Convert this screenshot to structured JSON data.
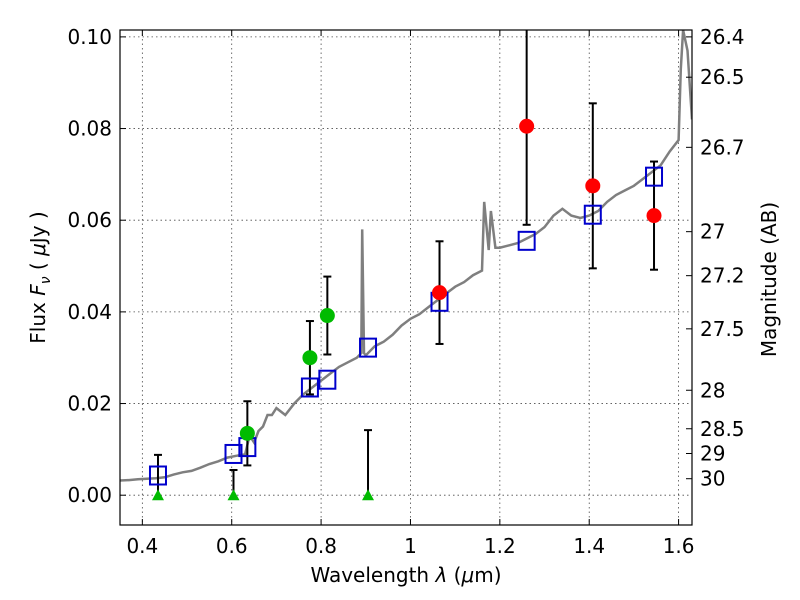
{
  "chart_data": {
    "type": "scatter",
    "title": "",
    "xlabel": "Wavelength λ (μm)",
    "ylabel": "Flux F_ν (μJy)",
    "y2label": "Magnitude (AB)",
    "xlim": [
      0.35,
      1.63
    ],
    "ylim": [
      -0.0065,
      0.1015
    ],
    "x_ticks": [
      0.4,
      0.6,
      0.8,
      1.0,
      1.2,
      1.4,
      1.6
    ],
    "x_tick_labels": [
      "0.4",
      "0.6",
      "0.8",
      "1",
      "1.2",
      "1.4",
      "1.6"
    ],
    "y_ticks": [
      0.0,
      0.02,
      0.04,
      0.06,
      0.08,
      0.1
    ],
    "y_tick_labels": [
      "0.00",
      "0.02",
      "0.04",
      "0.06",
      "0.08",
      "0.10"
    ],
    "y2_ticks": [
      {
        "label": "26.4",
        "flux": 0.1
      },
      {
        "label": "26.5",
        "flux": 0.0912
      },
      {
        "label": "26.7",
        "flux": 0.0759
      },
      {
        "label": "27",
        "flux": 0.0575
      },
      {
        "label": "27.2",
        "flux": 0.0479
      },
      {
        "label": "27.5",
        "flux": 0.0363
      },
      {
        "label": "28",
        "flux": 0.0229
      },
      {
        "label": "28.5",
        "flux": 0.0145
      },
      {
        "label": "29",
        "flux": 0.0091
      },
      {
        "label": "30",
        "flux": 0.0036
      }
    ],
    "grid": true,
    "colors": {
      "model": "#7f7f7f",
      "model_photometry": "#0000cc",
      "red_points": "#ff0000",
      "green_points": "#00bb00",
      "upper_limits": "#00bb00",
      "errorbars": "#000000"
    },
    "series": [
      {
        "kind": "line",
        "points": [
          [
            0.35,
            0.0032
          ],
          [
            0.37,
            0.0033
          ],
          [
            0.39,
            0.0035
          ],
          [
            0.41,
            0.0036
          ],
          [
            0.43,
            0.0037
          ],
          [
            0.45,
            0.0039
          ],
          [
            0.47,
            0.0045
          ],
          [
            0.49,
            0.005
          ],
          [
            0.51,
            0.0053
          ],
          [
            0.53,
            0.006
          ],
          [
            0.55,
            0.0068
          ],
          [
            0.57,
            0.0074
          ],
          [
            0.59,
            0.0082
          ],
          [
            0.61,
            0.0086
          ],
          [
            0.63,
            0.0089
          ],
          [
            0.64,
            0.013
          ],
          [
            0.65,
            0.0115
          ],
          [
            0.66,
            0.014
          ],
          [
            0.67,
            0.015
          ],
          [
            0.68,
            0.0175
          ],
          [
            0.69,
            0.0175
          ],
          [
            0.7,
            0.019
          ],
          [
            0.72,
            0.0175
          ],
          [
            0.74,
            0.02
          ],
          [
            0.76,
            0.022
          ],
          [
            0.78,
            0.0235
          ],
          [
            0.8,
            0.025
          ],
          [
            0.82,
            0.0265
          ],
          [
            0.84,
            0.028
          ],
          [
            0.86,
            0.029
          ],
          [
            0.88,
            0.03
          ],
          [
            0.89,
            0.031
          ],
          [
            0.892,
            0.058
          ],
          [
            0.896,
            0.031
          ],
          [
            0.9,
            0.0305
          ],
          [
            0.92,
            0.0325
          ],
          [
            0.94,
            0.0335
          ],
          [
            0.96,
            0.035
          ],
          [
            0.98,
            0.037
          ],
          [
            1.0,
            0.0385
          ],
          [
            1.02,
            0.0395
          ],
          [
            1.04,
            0.041
          ],
          [
            1.06,
            0.0425
          ],
          [
            1.08,
            0.044
          ],
          [
            1.1,
            0.0455
          ],
          [
            1.12,
            0.0465
          ],
          [
            1.14,
            0.048
          ],
          [
            1.16,
            0.049
          ],
          [
            1.165,
            0.064
          ],
          [
            1.175,
            0.0535
          ],
          [
            1.18,
            0.062
          ],
          [
            1.19,
            0.054
          ],
          [
            1.2,
            0.054
          ],
          [
            1.22,
            0.0545
          ],
          [
            1.24,
            0.055
          ],
          [
            1.26,
            0.056
          ],
          [
            1.28,
            0.057
          ],
          [
            1.3,
            0.0585
          ],
          [
            1.32,
            0.061
          ],
          [
            1.34,
            0.0625
          ],
          [
            1.36,
            0.061
          ],
          [
            1.38,
            0.0605
          ],
          [
            1.4,
            0.061
          ],
          [
            1.42,
            0.062
          ],
          [
            1.44,
            0.064
          ],
          [
            1.46,
            0.0655
          ],
          [
            1.48,
            0.0665
          ],
          [
            1.5,
            0.0675
          ],
          [
            1.52,
            0.069
          ],
          [
            1.54,
            0.0705
          ],
          [
            1.56,
            0.072
          ],
          [
            1.58,
            0.075
          ],
          [
            1.6,
            0.0775
          ],
          [
            1.605,
            0.093
          ],
          [
            1.61,
            0.1015
          ],
          [
            1.62,
            0.097
          ],
          [
            1.63,
            0.082
          ]
        ]
      },
      {
        "kind": "open-square",
        "points": [
          [
            0.435,
            0.0043
          ],
          [
            0.604,
            0.009
          ],
          [
            0.635,
            0.0105
          ],
          [
            0.775,
            0.0235
          ],
          [
            0.814,
            0.0252
          ],
          [
            0.905,
            0.0322
          ],
          [
            1.065,
            0.0422
          ],
          [
            1.26,
            0.0555
          ],
          [
            1.408,
            0.0612
          ],
          [
            1.545,
            0.0695
          ]
        ]
      },
      {
        "kind": "filled-circle",
        "color": "red",
        "points": [
          {
            "x": 1.065,
            "y": 0.0442,
            "err": 0.0112
          },
          {
            "x": 1.26,
            "y": 0.0805,
            "err": 0.0215
          },
          {
            "x": 1.408,
            "y": 0.0675,
            "err": 0.018
          },
          {
            "x": 1.545,
            "y": 0.061,
            "err": 0.0118
          }
        ]
      },
      {
        "kind": "filled-circle",
        "color": "green",
        "points": [
          {
            "x": 0.635,
            "y": 0.0135,
            "err": 0.007
          },
          {
            "x": 0.775,
            "y": 0.03,
            "err": 0.008
          },
          {
            "x": 0.814,
            "y": 0.0392,
            "err": 0.0085
          }
        ]
      },
      {
        "kind": "triangle",
        "points": [
          {
            "x": 0.435,
            "y": 0.0,
            "err": 0.0088
          },
          {
            "x": 0.604,
            "y": 0.0,
            "err": 0.0055
          },
          {
            "x": 0.905,
            "y": 0.0,
            "err": 0.0142
          }
        ]
      }
    ]
  }
}
